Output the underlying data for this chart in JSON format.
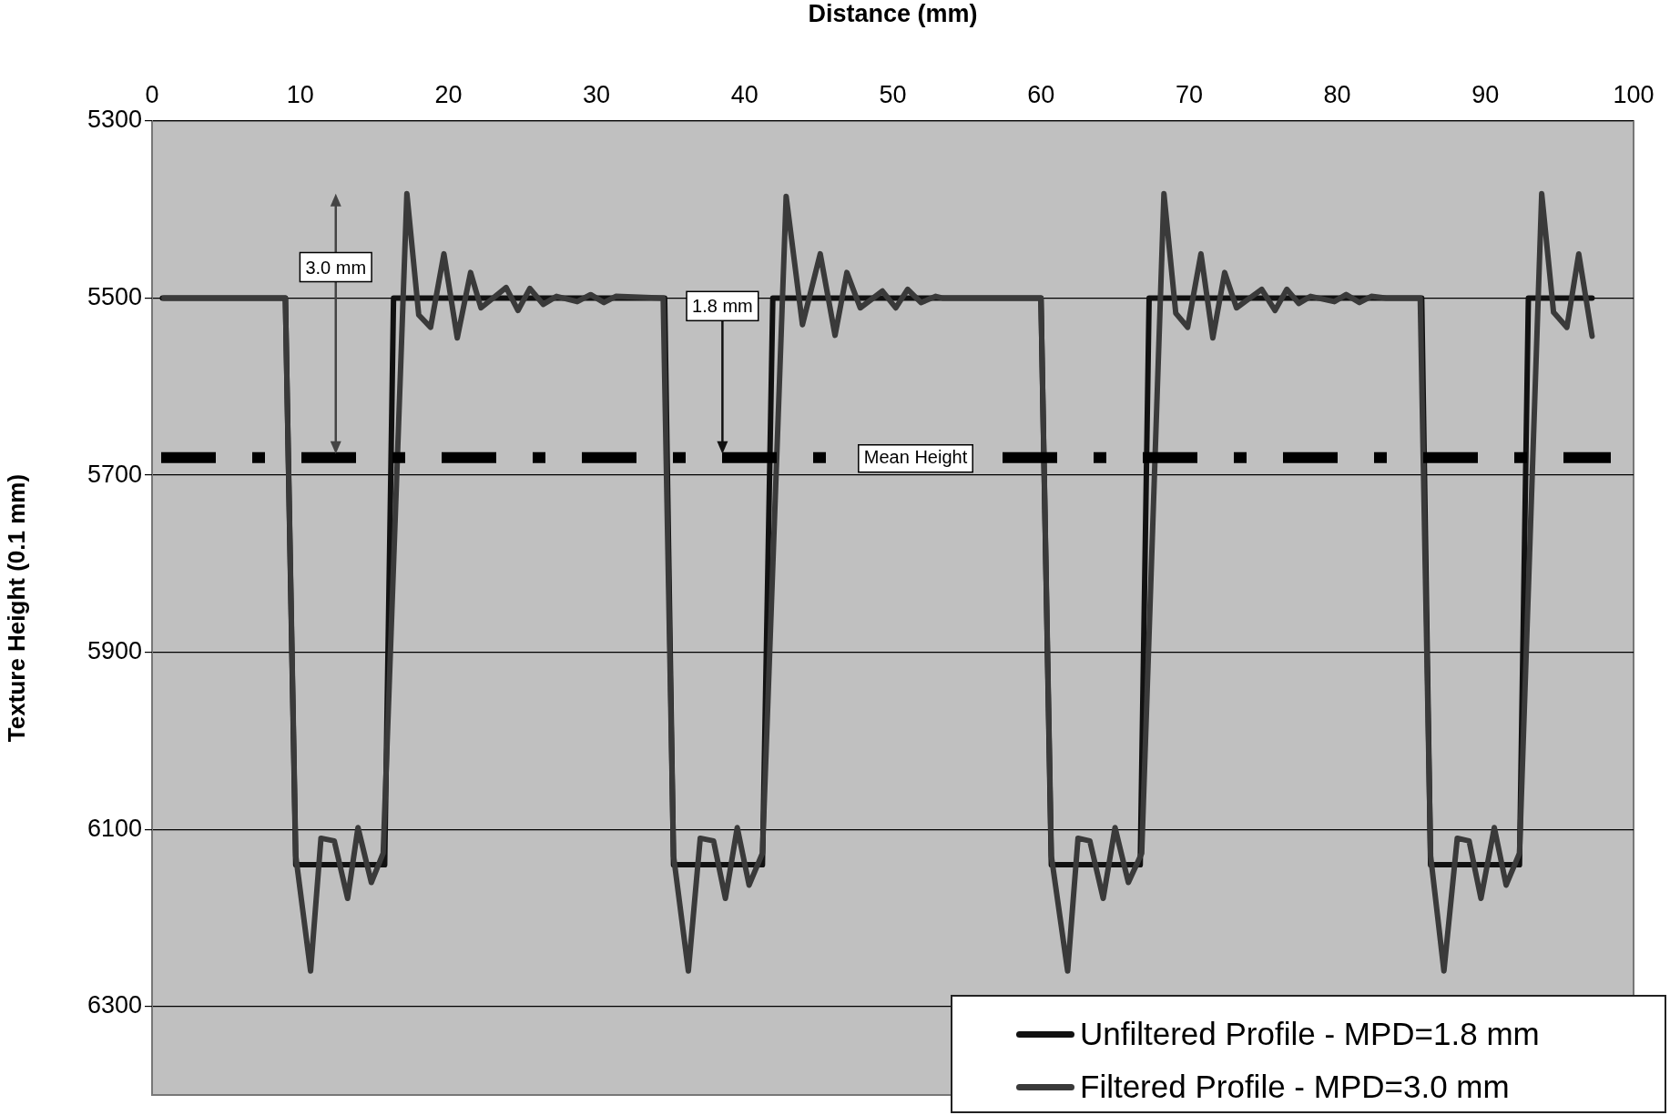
{
  "chart_data": {
    "type": "line",
    "xlabel": "Distance (mm)",
    "ylabel": "Texture Height (0.1 mm)",
    "xlim": [
      0,
      100
    ],
    "xticks": [
      0,
      10,
      20,
      30,
      40,
      50,
      60,
      70,
      80,
      90,
      100
    ],
    "ylim": [
      6400,
      5300
    ],
    "yticks": [
      5300,
      5500,
      5700,
      5900,
      6100,
      6300
    ],
    "grid": "y",
    "legend": "bottom right",
    "marker": "none",
    "line_style": "solid",
    "series": [
      {
        "name": "Unfiltered Profile - MPD=1.8 mm",
        "color": "#111111",
        "x": [
          0.7,
          9.0,
          9.7,
          15.7,
          16.3,
          34.6,
          35.2,
          41.2,
          41.9,
          60.0,
          60.7,
          66.7,
          67.3,
          85.7,
          86.3,
          92.3,
          92.9,
          97.2
        ],
        "values": [
          5500,
          5500,
          6140,
          6140,
          5500,
          5500,
          6140,
          6140,
          5500,
          5500,
          6140,
          6140,
          5500,
          5500,
          6140,
          6140,
          5500,
          5500
        ]
      },
      {
        "name": "Filtered Profile - MPD=3.0 mm",
        "color": "#3a3a3a",
        "x": [
          0.8,
          9.0,
          9.7,
          10.7,
          11.4,
          12.3,
          13.2,
          13.9,
          14.8,
          15.6,
          17.2,
          18.0,
          18.8,
          19.7,
          20.6,
          21.5,
          22.2,
          23.9,
          24.7,
          25.5,
          26.4,
          27.3,
          28.7,
          29.6,
          30.5,
          31.3,
          34.5,
          35.2,
          36.2,
          37.0,
          37.9,
          38.7,
          39.5,
          40.3,
          41.2,
          42.8,
          43.9,
          45.1,
          46.1,
          46.9,
          47.8,
          49.3,
          50.2,
          51.0,
          51.9,
          52.9,
          53.4,
          60.0,
          60.7,
          61.8,
          62.5,
          63.3,
          64.2,
          65.0,
          65.9,
          66.8,
          68.3,
          69.1,
          69.9,
          70.8,
          71.6,
          72.4,
          73.2,
          74.9,
          75.8,
          76.6,
          77.4,
          78.2,
          79.8,
          80.6,
          81.5,
          82.3,
          83.3,
          85.6,
          86.3,
          87.2,
          88.1,
          88.9,
          89.7,
          90.6,
          91.4,
          92.3,
          93.8,
          94.6,
          95.5,
          96.3,
          97.2
        ],
        "values": [
          5500,
          5500,
          6130,
          6260,
          6110,
          6113,
          6178,
          6098,
          6160,
          6127,
          5382,
          5519,
          5533,
          5450,
          5545,
          5471,
          5511,
          5488,
          5514,
          5489,
          5507,
          5498,
          5504,
          5496,
          5505,
          5498,
          5500,
          6130,
          6260,
          6110,
          6113,
          6178,
          6098,
          6163,
          6127,
          5385,
          5530,
          5450,
          5542,
          5471,
          5511,
          5492,
          5511,
          5490,
          5505,
          5498,
          5500,
          5500,
          6130,
          6260,
          6110,
          6113,
          6178,
          6098,
          6160,
          6127,
          5382,
          5517,
          5533,
          5450,
          5545,
          5471,
          5511,
          5490,
          5514,
          5490,
          5506,
          5498,
          5504,
          5496,
          5505,
          5498,
          5500,
          5500,
          6130,
          6260,
          6110,
          6113,
          6178,
          6098,
          6163,
          6127,
          5382,
          5516,
          5533,
          5450,
          5543
        ]
      }
    ],
    "ref_lines": [
      {
        "axis": "y",
        "value": 5680,
        "label": "Mean Height",
        "color": "#000000",
        "line_style": "dashed"
      }
    ],
    "annotations": [
      "1.8 mm",
      "3.0 mm"
    ]
  }
}
